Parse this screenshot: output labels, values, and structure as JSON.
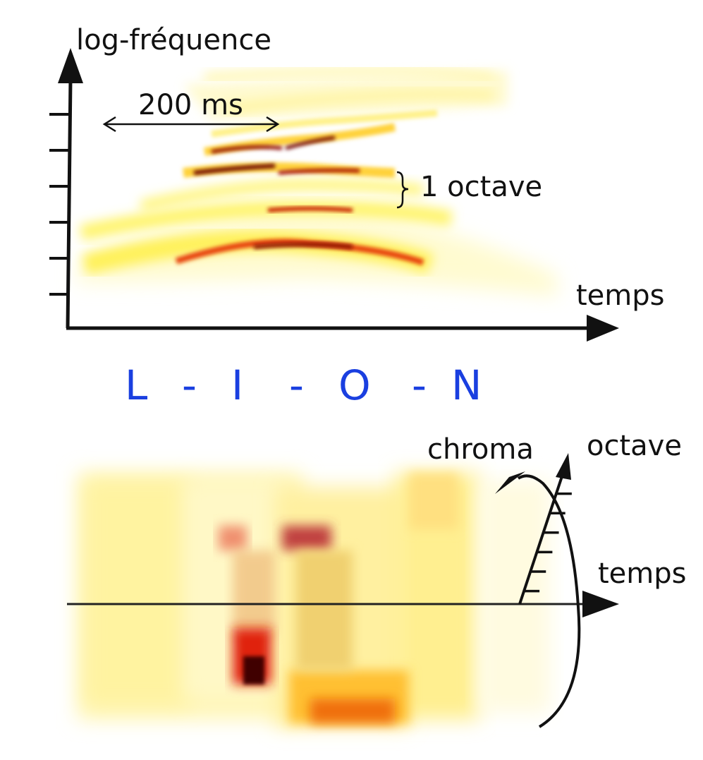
{
  "top_panel": {
    "y_axis_label": "log-fréquence",
    "x_axis_label": "temps",
    "duration_label": "200 ms",
    "octave_label": "1 octave",
    "tick_count": 6
  },
  "word": {
    "letters": [
      "L",
      "I",
      "O",
      "N"
    ],
    "separator": "-",
    "color": "#1a3fe0"
  },
  "bottom_panel": {
    "chroma_label": "chroma",
    "octave_label": "octave",
    "time_label": "temps",
    "tick_count": 6
  },
  "colors": {
    "axis": "#111111",
    "heat_low": "#fff59a",
    "heat_mid": "#f5a000",
    "heat_high": "#7a0000"
  }
}
